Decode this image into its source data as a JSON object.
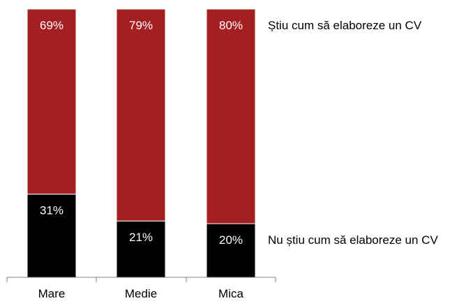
{
  "chart_data": {
    "type": "bar",
    "stacked": true,
    "percent": true,
    "categories": [
      "Mare",
      "Medie",
      "Mica"
    ],
    "series": [
      {
        "name": "Nu știu cum să elaboreze un CV",
        "values": [
          31,
          21,
          20
        ],
        "labels": [
          "31%",
          "21%",
          "20%"
        ],
        "color": "#000000"
      },
      {
        "name": "Știu cum să elaboreze un CV",
        "values": [
          69,
          79,
          80
        ],
        "labels": [
          "69%",
          "79%",
          "80%"
        ],
        "color": "#a31f22"
      }
    ],
    "title": "",
    "xlabel": "",
    "ylabel": "",
    "ylim": [
      0,
      100
    ],
    "grid": false,
    "legend": "right"
  }
}
